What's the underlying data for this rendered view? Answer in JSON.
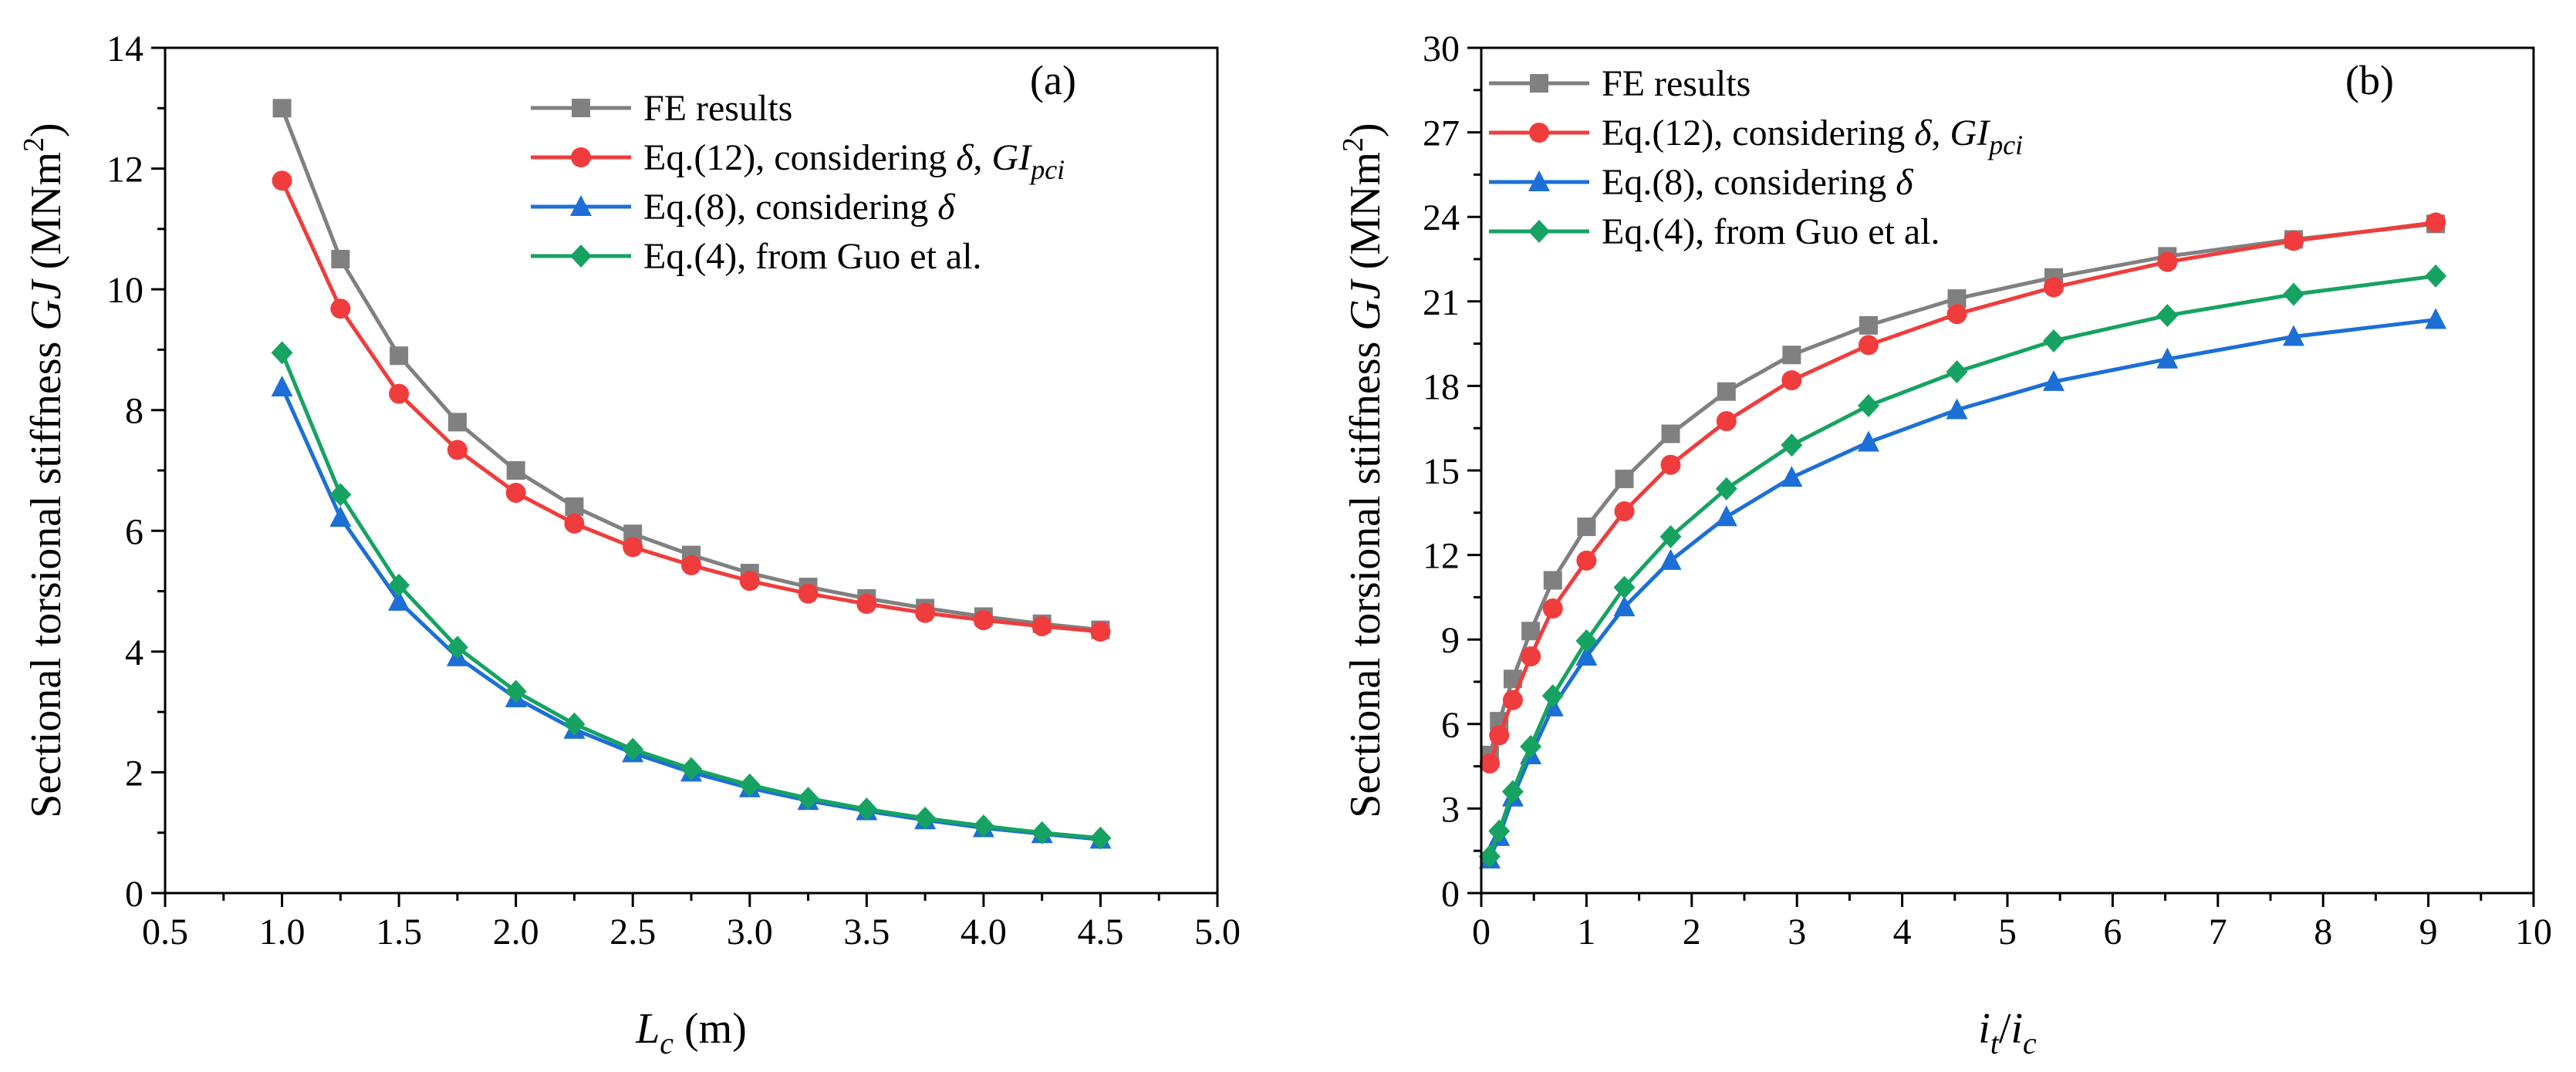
{
  "chart_data": [
    {
      "type": "line",
      "panel_label": "(a)",
      "title": "",
      "xlabel": {
        "var": "L",
        "sub": "c",
        "unit": " (m)"
      },
      "ylabel": {
        "pre": "Sectional torsional stiffness ",
        "var": "GJ",
        "unit_pre": " (MNm",
        "unit_sup": "2",
        "unit_post": ")"
      },
      "xlim": [
        0.5,
        5.0
      ],
      "ylim": [
        0,
        14
      ],
      "xticks": [
        "0.5",
        "1.0",
        "1.5",
        "2.0",
        "2.5",
        "3.0",
        "3.5",
        "4.0",
        "4.5",
        "5.0"
      ],
      "yticks": [
        "0",
        "2",
        "4",
        "6",
        "8",
        "10",
        "12",
        "14"
      ],
      "x": [
        1.0,
        1.25,
        1.5,
        1.75,
        2.0,
        2.25,
        2.5,
        2.75,
        3.0,
        3.25,
        3.5,
        3.75,
        4.0,
        4.25,
        4.5
      ],
      "legend_position": "top-right",
      "series": [
        {
          "key": "fe",
          "name": "FE results",
          "values": [
            13.0,
            10.5,
            8.9,
            7.8,
            7.0,
            6.4,
            5.95,
            5.6,
            5.3,
            5.07,
            4.88,
            4.72,
            4.58,
            4.46,
            4.36
          ]
        },
        {
          "key": "eq12",
          "name": "Eq.(12), considering",
          "values": [
            11.8,
            9.68,
            8.27,
            7.34,
            6.63,
            6.12,
            5.73,
            5.43,
            5.17,
            4.96,
            4.79,
            4.64,
            4.52,
            4.42,
            4.33
          ]
        },
        {
          "key": "eq8",
          "name": "Eq.(8), considering",
          "values": [
            8.38,
            6.22,
            4.83,
            3.91,
            3.23,
            2.71,
            2.32,
            2.0,
            1.74,
            1.53,
            1.36,
            1.21,
            1.08,
            0.98,
            0.89
          ]
        },
        {
          "key": "eq4",
          "name": "Eq.(4), from Guo et al.",
          "values": [
            8.95,
            6.6,
            5.1,
            4.07,
            3.34,
            2.8,
            2.38,
            2.06,
            1.79,
            1.57,
            1.39,
            1.24,
            1.11,
            1.0,
            0.91
          ]
        }
      ]
    },
    {
      "type": "line",
      "panel_label": "(b)",
      "title": "",
      "xlabel": {
        "var": "i",
        "sub": "t",
        "slash": "/",
        "var2": "i",
        "sub2": "c"
      },
      "ylabel": {
        "pre": "Sectional torsional stiffness ",
        "var": "GJ",
        "unit_pre": " (MNm",
        "unit_sup": "2",
        "unit_post": ")"
      },
      "xlim": [
        0,
        10
      ],
      "ylim": [
        0,
        30
      ],
      "xticks": [
        "0",
        "1",
        "2",
        "3",
        "4",
        "5",
        "6",
        "7",
        "8",
        "9",
        "10"
      ],
      "yticks": [
        "0",
        "3",
        "6",
        "9",
        "12",
        "15",
        "18",
        "21",
        "24",
        "27",
        "30"
      ],
      "legend_position": "top-left",
      "series": [
        {
          "key": "fe",
          "name": "FE results",
          "x": [
            0.08,
            0.17,
            0.3,
            0.47,
            0.68,
            1.0,
            1.36,
            1.8,
            2.33,
            2.95,
            3.68,
            4.52,
            5.44,
            6.52,
            7.72,
            9.07
          ],
          "values": [
            4.9,
            6.1,
            7.6,
            9.3,
            11.1,
            13.0,
            14.7,
            16.3,
            17.8,
            19.1,
            20.15,
            21.1,
            21.85,
            22.6,
            23.2,
            23.75
          ]
        },
        {
          "key": "eq12",
          "name": "Eq.(12), considering",
          "x": [
            0.08,
            0.17,
            0.3,
            0.47,
            0.68,
            1.0,
            1.36,
            1.8,
            2.33,
            2.95,
            3.68,
            4.52,
            5.44,
            6.52,
            7.72,
            9.07
          ],
          "values": [
            4.6,
            5.6,
            6.85,
            8.4,
            10.1,
            11.8,
            13.55,
            15.2,
            16.75,
            18.2,
            19.45,
            20.55,
            21.5,
            22.4,
            23.15,
            23.8
          ]
        },
        {
          "key": "eq8",
          "name": "Eq.(8), considering",
          "x": [
            0.08,
            0.17,
            0.3,
            0.47,
            0.68,
            1.0,
            1.36,
            1.8,
            2.33,
            2.95,
            3.68,
            4.52,
            5.44,
            6.52,
            7.72,
            9.07
          ],
          "values": [
            1.2,
            2.0,
            3.4,
            4.9,
            6.6,
            8.4,
            10.15,
            11.8,
            13.35,
            14.75,
            16.0,
            17.15,
            18.15,
            18.95,
            19.75,
            20.35
          ]
        },
        {
          "key": "eq4",
          "name": "Eq.(4), from Guo et al.",
          "x": [
            0.08,
            0.17,
            0.3,
            0.47,
            0.68,
            1.0,
            1.36,
            1.8,
            2.33,
            2.95,
            3.68,
            4.52,
            5.44,
            6.52,
            7.72,
            9.07
          ],
          "values": [
            1.3,
            2.2,
            3.6,
            5.2,
            7.0,
            8.95,
            10.85,
            12.65,
            14.35,
            15.9,
            17.3,
            18.5,
            19.6,
            20.5,
            21.25,
            21.9
          ]
        }
      ]
    }
  ],
  "legend_extras": {
    "delta": "δ",
    "gi_sep": ", ",
    "gi_base": "GI",
    "gi_sub": "pci"
  },
  "styles": {
    "fe": {
      "color": "#808080",
      "marker": "square"
    },
    "eq12": {
      "color": "#f03c3c",
      "marker": "circle"
    },
    "eq8": {
      "color": "#1c6fd6",
      "marker": "triangle"
    },
    "eq4": {
      "color": "#16a361",
      "marker": "diamond"
    }
  }
}
